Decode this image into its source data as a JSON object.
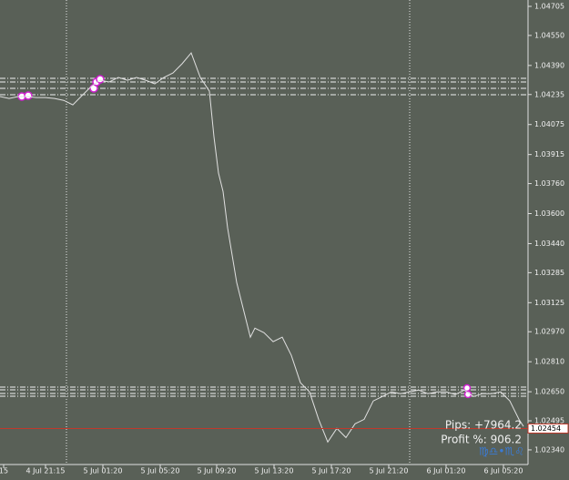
{
  "chart_data": {
    "type": "line",
    "x": [
      0,
      1,
      2,
      3,
      4,
      5,
      6,
      7,
      8,
      9,
      10,
      11,
      12,
      13,
      14,
      15,
      16,
      17,
      18,
      19,
      20,
      21,
      22,
      23,
      23.5,
      24,
      24.5,
      25,
      25.5,
      26,
      26.5,
      27,
      27.5,
      28,
      29,
      30,
      31,
      32,
      33,
      34,
      35,
      36,
      37,
      38,
      39,
      40,
      41,
      42,
      43,
      44,
      45,
      46,
      47,
      48,
      49,
      50,
      51,
      52,
      53,
      54,
      55,
      56,
      57,
      57.5
    ],
    "series": [
      {
        "color": "#e0e0e0",
        "values": [
          1.04224,
          1.04214,
          1.04224,
          1.04224,
          1.04219,
          1.04219,
          1.04214,
          1.04204,
          1.0418,
          1.04229,
          1.04277,
          1.04311,
          1.04302,
          1.04326,
          1.04311,
          1.04326,
          1.04311,
          1.04292,
          1.04326,
          1.0435,
          1.04399,
          1.04457,
          1.04326,
          1.04253,
          1.0401,
          1.03816,
          1.03718,
          1.03524,
          1.03378,
          1.03232,
          1.03135,
          1.03038,
          1.02941,
          1.02989,
          1.02965,
          1.02917,
          1.02941,
          1.02844,
          1.02698,
          1.02649,
          1.02503,
          1.02382,
          1.02455,
          1.02406,
          1.02479,
          1.02503,
          1.02601,
          1.02625,
          1.02649,
          1.0264,
          1.02649,
          1.02659,
          1.0264,
          1.02649,
          1.02649,
          1.02635,
          1.02659,
          1.02625,
          1.0264,
          1.0264,
          1.02649,
          1.02601,
          1.02503,
          1.02465
        ]
      }
    ],
    "xlim": [
      0,
      58
    ],
    "xticks": [
      {
        "value": 0.4,
        "label": "15"
      },
      {
        "value": 5.0,
        "label": "4 Jul 21:15"
      },
      {
        "value": 11.3,
        "label": "5 Jul 01:20"
      },
      {
        "value": 17.6,
        "label": "5 Jul 05:20"
      },
      {
        "value": 23.8,
        "label": "5 Jul 09:20"
      },
      {
        "value": 30.1,
        "label": "5 Jul 13:20"
      },
      {
        "value": 36.4,
        "label": "5 Jul 17:20"
      },
      {
        "value": 42.7,
        "label": "5 Jul 21:20"
      },
      {
        "value": 49.0,
        "label": "6 Jul 01:20"
      },
      {
        "value": 55.3,
        "label": "6 Jul 05:20"
      }
    ],
    "ylim": [
      1.02262,
      1.04739
    ],
    "yticks": [
      1.04705,
      {
        "value": 1.0455,
        "label": "1.04550"
      },
      {
        "value": 1.0439,
        "label": "1.04390"
      },
      1.04235,
      1.04075,
      1.03915,
      {
        "value": 1.0376,
        "label": "1.03760"
      },
      {
        "value": 1.036,
        "label": "1.03600"
      },
      {
        "value": 1.0344,
        "label": "1.03440"
      },
      1.03285,
      1.03125,
      {
        "value": 1.0297,
        "label": "1.02970"
      },
      {
        "value": 1.0281,
        "label": "1.02810"
      },
      {
        "value": 1.0265,
        "label": "1.02650"
      },
      1.02495,
      {
        "value": 1.0234,
        "label": "1.02340"
      }
    ],
    "current_price": 1.02454,
    "current_price_color": "#c0392b",
    "annotations": [
      "Pips: +7964.2",
      "Profit %: 906.2",
      "♍♎•♏♌"
    ]
  }
}
